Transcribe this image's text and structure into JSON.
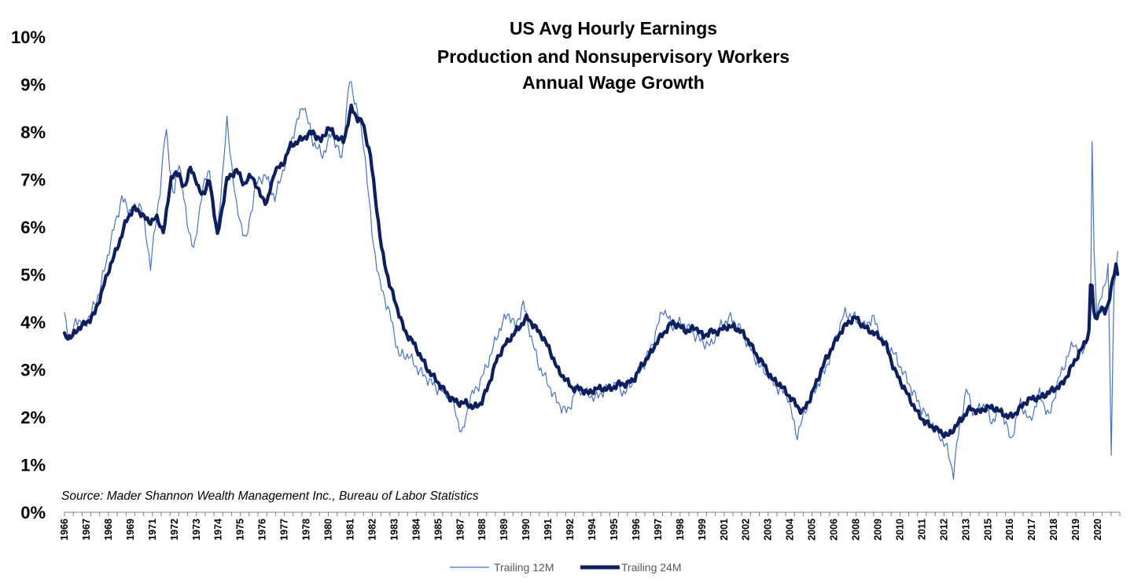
{
  "chart_data": {
    "type": "line",
    "title_lines": [
      "US Avg Hourly Earnings",
      "Production and Nonsupervisory Workers",
      "Annual Wage Growth"
    ],
    "source": "Source: Mader Shannon Wealth Management Inc., Bureau of Labor Statistics",
    "xlabel": "",
    "ylabel": "",
    "ylim": [
      0,
      10
    ],
    "y_ticks": [
      "0%",
      "1%",
      "2%",
      "3%",
      "4%",
      "5%",
      "6%",
      "7%",
      "8%",
      "9%",
      "10%"
    ],
    "x_range": [
      1966,
      2021.2
    ],
    "x_tick_labels": [
      "1966",
      "1967",
      "1968",
      "1969",
      "1971",
      "1972",
      "1973",
      "1974",
      "1975",
      "1976",
      "1977",
      "1978",
      "1980",
      "1981",
      "1982",
      "1983",
      "1984",
      "1985",
      "1987",
      "1988",
      "1989",
      "1990",
      "1991",
      "1992",
      "1994",
      "1995",
      "1996",
      "1997",
      "1998",
      "1999",
      "2001",
      "2002",
      "2003",
      "2004",
      "2005",
      "2006",
      "2008",
      "2009",
      "2010",
      "2011",
      "2012",
      "2013",
      "2015",
      "2016",
      "2017",
      "2018",
      "2019",
      "2020"
    ],
    "x_tick_values": [
      1966.0,
      1967.15,
      1968.3,
      1969.45,
      1970.6,
      1971.75,
      1972.9,
      1974.05,
      1975.2,
      1976.35,
      1977.5,
      1978.65,
      1979.8,
      1980.95,
      1982.1,
      1983.25,
      1984.4,
      1985.55,
      1986.7,
      1987.85,
      1989.0,
      1990.15,
      1991.3,
      1992.45,
      1993.6,
      1994.75,
      1995.9,
      1997.05,
      1998.2,
      1999.35,
      2000.5,
      2001.65,
      2002.8,
      2003.95,
      2005.1,
      2006.25,
      2007.4,
      2008.55,
      2009.7,
      2010.85,
      2012.0,
      2013.15,
      2014.3,
      2015.45,
      2016.6,
      2017.75,
      2018.9,
      2020.05
    ],
    "grid": false,
    "legend_position": "bottom-center",
    "colors": {
      "trailing_12m": "#4472C4",
      "trailing_24m": "#0D1F5C"
    },
    "series": [
      {
        "name": "Trailing 12M",
        "x": [
          1966.0,
          1966.3,
          1966.6,
          1967.0,
          1967.4,
          1967.8,
          1968.2,
          1968.6,
          1969.0,
          1969.5,
          1970.0,
          1970.5,
          1971.0,
          1971.3,
          1971.7,
          1972.0,
          1972.4,
          1972.8,
          1973.2,
          1973.6,
          1974.0,
          1974.5,
          1975.0,
          1975.5,
          1976.0,
          1976.5,
          1977.0,
          1977.5,
          1978.0,
          1978.5,
          1979.0,
          1979.5,
          1980.0,
          1980.5,
          1980.9,
          1981.3,
          1981.7,
          1982.1,
          1982.5,
          1983.0,
          1983.5,
          1984.0,
          1984.5,
          1985.0,
          1985.5,
          1986.0,
          1986.4,
          1986.8,
          1987.2,
          1987.7,
          1988.2,
          1988.7,
          1989.2,
          1989.6,
          1990.0,
          1990.4,
          1990.8,
          1991.3,
          1991.8,
          1992.3,
          1992.8,
          1993.3,
          1993.8,
          1994.3,
          1994.8,
          1995.3,
          1995.8,
          1996.3,
          1996.8,
          1997.3,
          1997.8,
          1998.3,
          1998.8,
          1999.3,
          1999.8,
          2000.3,
          2000.8,
          2001.3,
          2001.8,
          2002.3,
          2002.8,
          2003.3,
          2003.8,
          2004.3,
          2004.8,
          2005.3,
          2005.8,
          2006.3,
          2006.8,
          2007.3,
          2007.8,
          2008.3,
          2008.8,
          2009.3,
          2009.8,
          2010.3,
          2010.8,
          2011.3,
          2011.8,
          2012.2,
          2012.5,
          2012.8,
          2013.2,
          2013.6,
          2014.0,
          2014.5,
          2015.0,
          2015.5,
          2016.0,
          2016.5,
          2017.0,
          2017.5,
          2018.0,
          2018.4,
          2018.8,
          2019.1,
          2019.4,
          2019.7,
          2019.75,
          2019.85,
          2020.0,
          2020.3,
          2020.6,
          2020.75,
          2020.9,
          2021.1
        ],
        "y": [
          4.2,
          3.5,
          4.1,
          3.9,
          4.2,
          4.6,
          5.3,
          6.0,
          6.6,
          6.3,
          6.5,
          5.2,
          6.8,
          8.1,
          6.6,
          7.4,
          6.1,
          5.5,
          6.8,
          7.2,
          5.9,
          8.2,
          6.4,
          5.7,
          6.9,
          7.1,
          6.6,
          7.3,
          8.0,
          8.6,
          7.8,
          7.5,
          8.0,
          7.4,
          9.1,
          8.5,
          7.6,
          5.8,
          4.8,
          4.2,
          3.3,
          3.3,
          3.0,
          2.8,
          2.6,
          2.5,
          2.2,
          1.6,
          2.4,
          2.7,
          3.2,
          3.8,
          4.2,
          3.9,
          4.4,
          3.7,
          3.1,
          2.7,
          2.3,
          2.1,
          2.6,
          2.5,
          2.4,
          2.6,
          2.7,
          2.5,
          2.8,
          3.1,
          3.6,
          4.3,
          3.9,
          4.0,
          3.8,
          3.6,
          3.5,
          3.9,
          4.1,
          3.9,
          3.5,
          3.1,
          2.9,
          2.6,
          2.5,
          1.6,
          2.2,
          2.6,
          3.0,
          3.6,
          4.2,
          4.1,
          3.9,
          4.1,
          3.6,
          3.4,
          3.0,
          2.6,
          2.2,
          1.9,
          1.6,
          1.3,
          0.8,
          1.8,
          2.6,
          2.0,
          2.3,
          1.9,
          2.2,
          1.5,
          2.3,
          1.9,
          2.5,
          2.0,
          2.8,
          3.2,
          3.6,
          3.3,
          3.5,
          4.1,
          7.8,
          5.5,
          4.2,
          4.6,
          5.2,
          1.2,
          4.8,
          5.5
        ]
      },
      {
        "name": "Trailing 24M",
        "x": [
          1966.0,
          1966.4,
          1966.8,
          1967.2,
          1967.6,
          1968.0,
          1968.4,
          1968.8,
          1969.2,
          1969.6,
          1970.0,
          1970.4,
          1970.8,
          1971.2,
          1971.6,
          1972.0,
          1972.3,
          1972.6,
          1973.0,
          1973.3,
          1973.6,
          1974.0,
          1974.5,
          1975.0,
          1975.4,
          1975.8,
          1976.2,
          1976.6,
          1977.0,
          1977.4,
          1977.8,
          1978.2,
          1978.6,
          1979.0,
          1979.4,
          1979.8,
          1980.2,
          1980.6,
          1981.0,
          1981.3,
          1981.6,
          1982.0,
          1982.3,
          1982.6,
          1983.0,
          1983.4,
          1983.8,
          1984.2,
          1984.6,
          1985.0,
          1985.4,
          1985.8,
          1986.2,
          1986.6,
          1987.0,
          1987.4,
          1987.8,
          1988.2,
          1988.6,
          1989.0,
          1989.4,
          1989.8,
          1990.2,
          1990.6,
          1991.0,
          1991.4,
          1991.8,
          1992.2,
          1992.6,
          1993.0,
          1993.4,
          1993.8,
          1994.2,
          1994.6,
          1995.0,
          1995.4,
          1995.8,
          1996.2,
          1996.6,
          1997.0,
          1997.4,
          1997.8,
          1998.2,
          1998.6,
          1999.0,
          1999.4,
          1999.8,
          2000.2,
          2000.6,
          2001.0,
          2001.4,
          2001.8,
          2002.2,
          2002.6,
          2003.0,
          2003.4,
          2003.8,
          2004.2,
          2004.6,
          2005.0,
          2005.4,
          2005.8,
          2006.2,
          2006.6,
          2007.0,
          2007.4,
          2007.8,
          2008.2,
          2008.6,
          2009.0,
          2009.4,
          2009.8,
          2010.2,
          2010.6,
          2011.0,
          2011.4,
          2011.8,
          2012.2,
          2012.6,
          2013.0,
          2013.4,
          2013.8,
          2014.2,
          2014.6,
          2015.0,
          2015.4,
          2015.8,
          2016.2,
          2016.6,
          2017.0,
          2017.4,
          2017.8,
          2018.2,
          2018.6,
          2019.0,
          2019.3,
          2019.6,
          2019.7,
          2019.8,
          2020.0,
          2020.2,
          2020.4,
          2020.6,
          2020.8,
          2021.0,
          2021.15
        ],
        "y": [
          3.7,
          3.7,
          3.9,
          4.0,
          4.2,
          4.7,
          5.2,
          5.6,
          6.1,
          6.4,
          6.3,
          6.1,
          6.2,
          5.9,
          7.1,
          7.1,
          6.8,
          7.3,
          6.8,
          6.7,
          7.0,
          5.8,
          7.0,
          7.2,
          6.9,
          7.1,
          6.7,
          6.5,
          7.2,
          7.3,
          7.7,
          7.8,
          7.9,
          8.0,
          7.8,
          8.1,
          7.9,
          7.8,
          8.5,
          8.3,
          8.2,
          7.5,
          6.5,
          5.5,
          4.8,
          4.3,
          3.8,
          3.6,
          3.3,
          3.0,
          2.8,
          2.6,
          2.4,
          2.3,
          2.3,
          2.2,
          2.3,
          2.7,
          3.2,
          3.5,
          3.7,
          3.9,
          4.1,
          3.9,
          3.7,
          3.4,
          3.0,
          2.8,
          2.6,
          2.6,
          2.5,
          2.6,
          2.6,
          2.6,
          2.7,
          2.7,
          2.8,
          3.1,
          3.3,
          3.6,
          3.8,
          4.0,
          3.9,
          3.8,
          3.9,
          3.7,
          3.8,
          3.8,
          3.9,
          3.9,
          3.8,
          3.6,
          3.3,
          3.1,
          2.8,
          2.7,
          2.5,
          2.3,
          2.1,
          2.4,
          2.8,
          3.2,
          3.5,
          3.8,
          4.0,
          4.1,
          3.9,
          3.8,
          3.7,
          3.5,
          3.0,
          2.7,
          2.4,
          2.1,
          1.9,
          1.8,
          1.7,
          1.6,
          1.8,
          2.0,
          2.2,
          2.1,
          2.2,
          2.2,
          2.1,
          2.0,
          2.1,
          2.3,
          2.4,
          2.4,
          2.5,
          2.6,
          2.7,
          3.0,
          3.3,
          3.5,
          3.8,
          5.3,
          4.2,
          4.1,
          4.3,
          4.2,
          4.4,
          4.8,
          5.2,
          4.9
        ]
      }
    ]
  }
}
